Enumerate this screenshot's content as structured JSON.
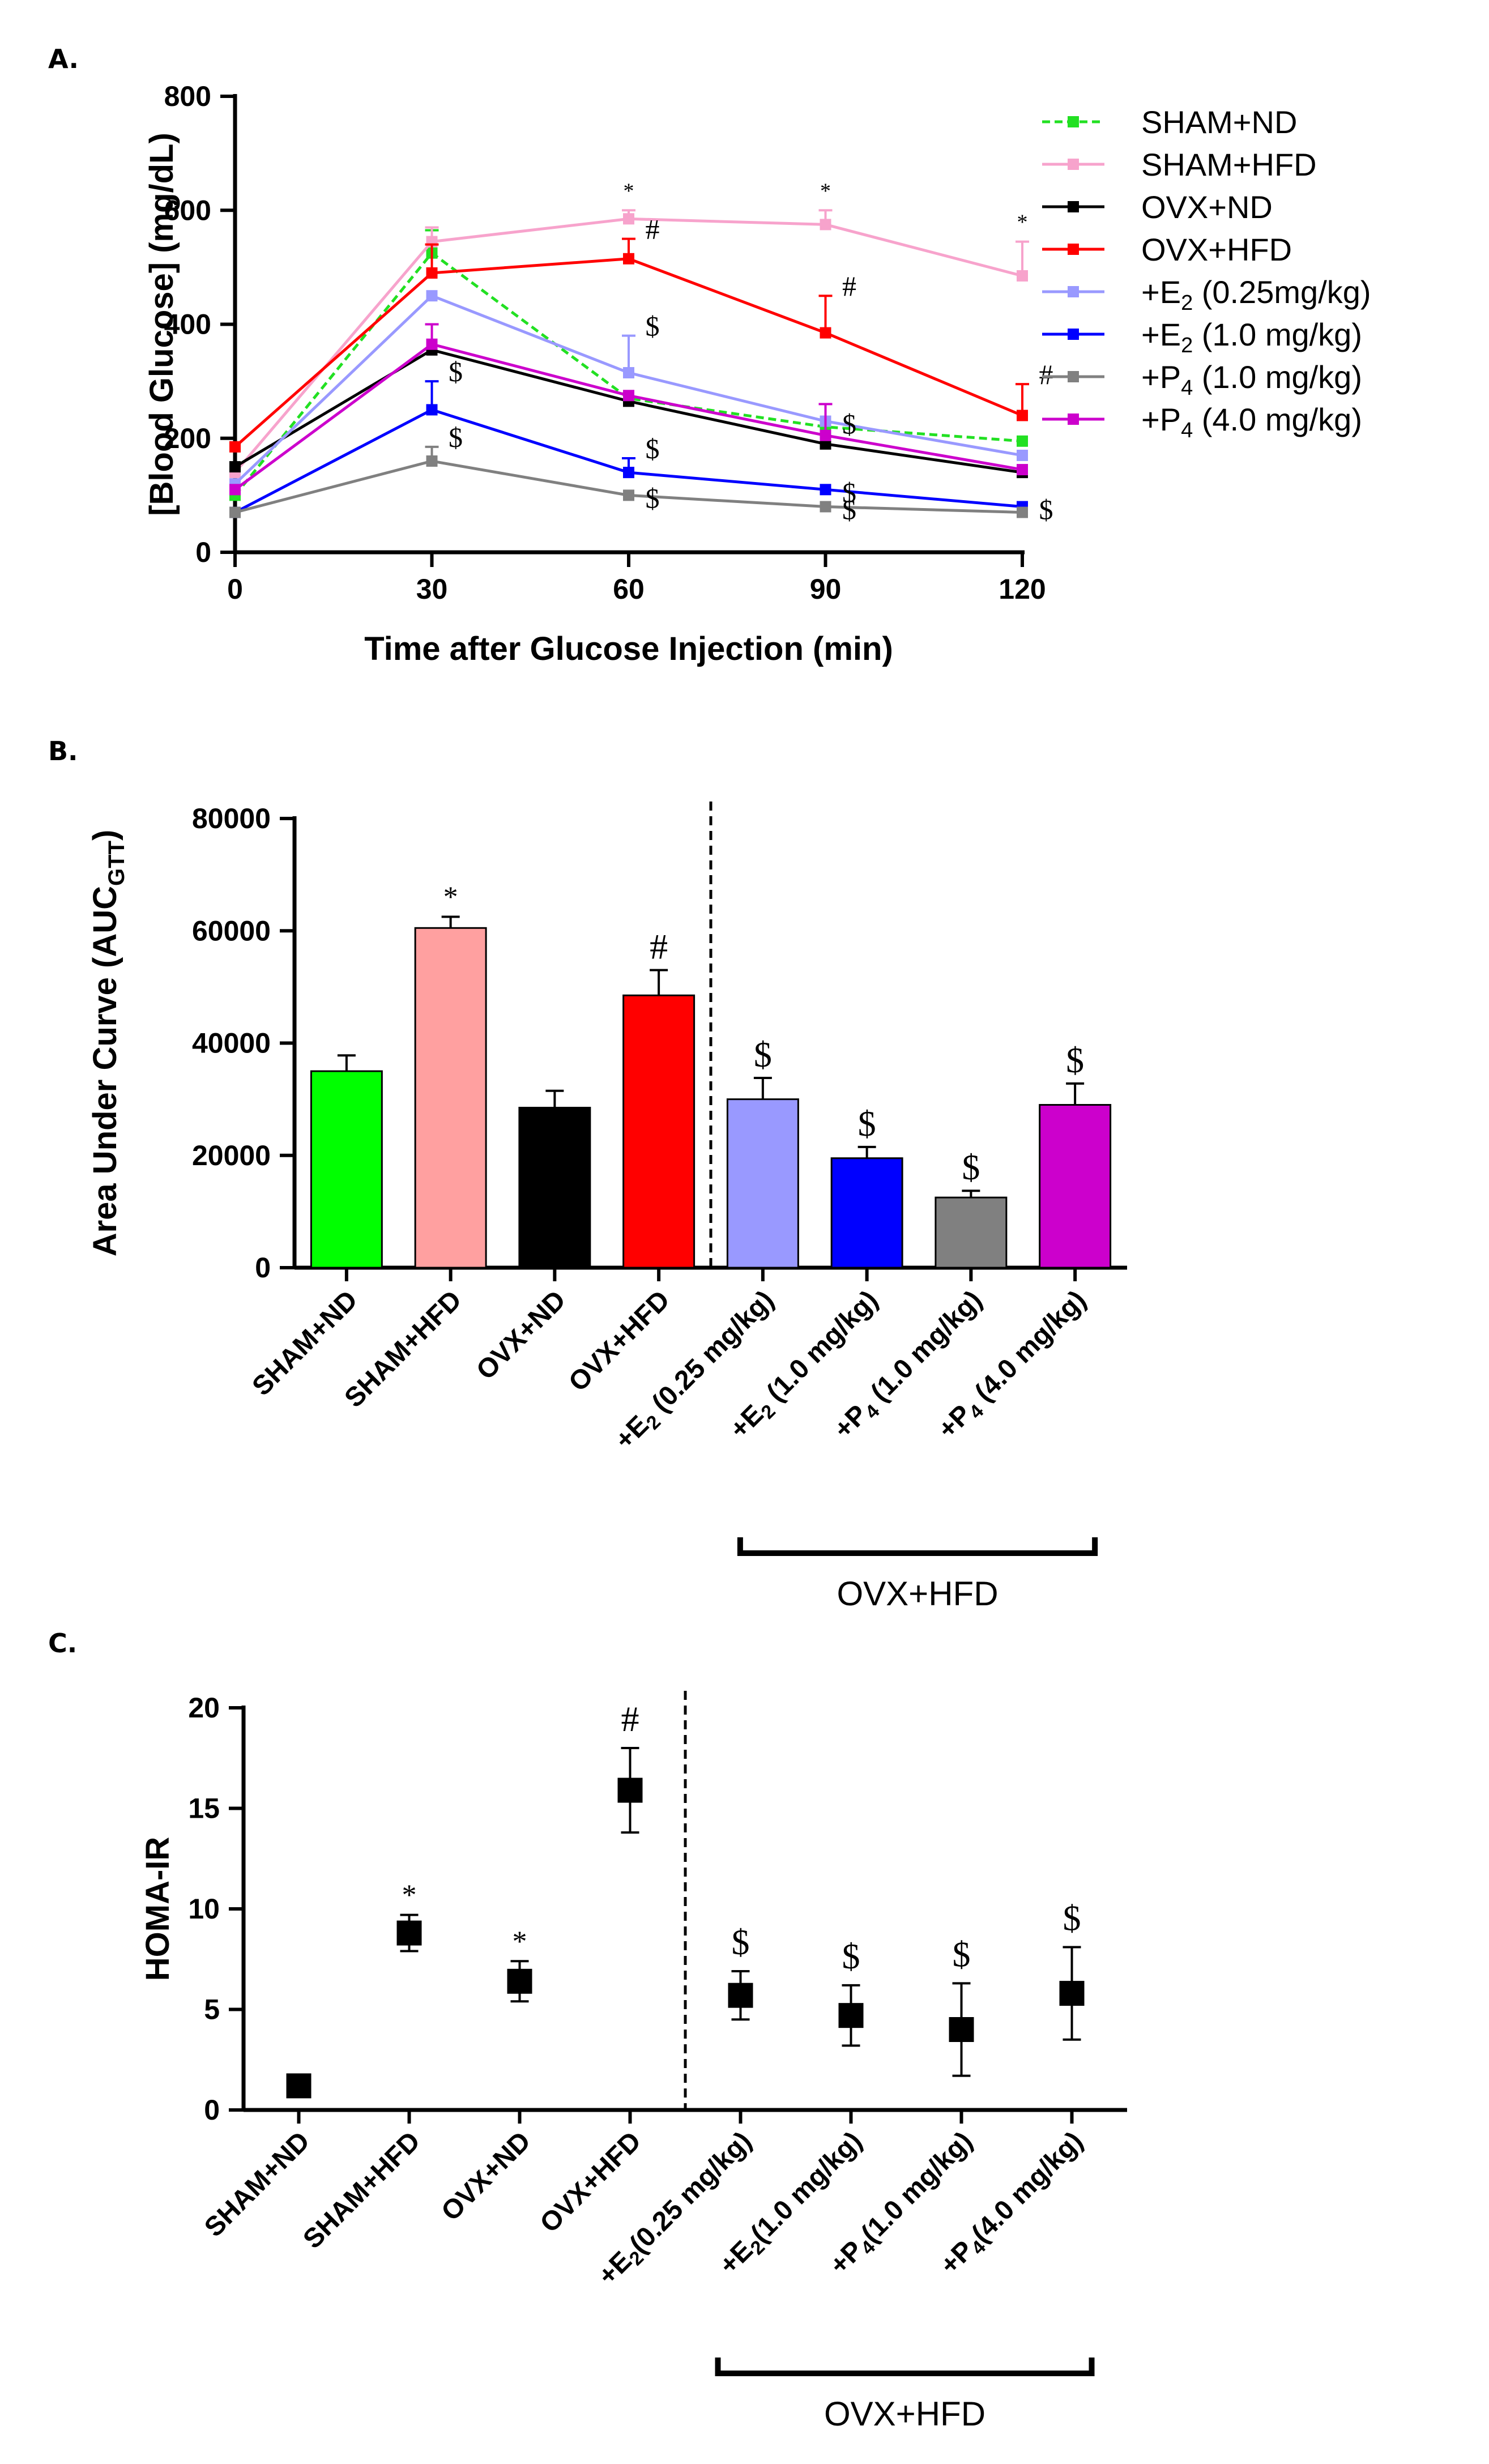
{
  "panels": {
    "a": "A.",
    "b": "B.",
    "c": "C."
  },
  "chart_data": [
    {
      "type": "line",
      "xlabel": "Time after Glucose Injection (min)",
      "ylabel": "[Blood Glucose] (mg/dL)",
      "x": [
        0,
        30,
        60,
        90,
        120
      ],
      "xticks": [
        "0",
        "30",
        "60",
        "90",
        "120"
      ],
      "xlim": [
        0,
        120
      ],
      "ylim": [
        0,
        800
      ],
      "yticks": [
        "0",
        "200",
        "400",
        "600",
        "800"
      ],
      "grid": false,
      "legend_position": "top-right",
      "series": [
        {
          "name": "SHAM+ND",
          "name_main": "SHAM+ND",
          "color": "#22e022",
          "dashed": true,
          "values": [
            100,
            525,
            270,
            220,
            195
          ],
          "errors": [
            0,
            40,
            0,
            0,
            0
          ],
          "annotations": [
            "",
            "",
            "",
            "",
            ""
          ]
        },
        {
          "name": "SHAM+HFD",
          "name_main": "SHAM+HFD",
          "color": "#f7a3cc",
          "dashed": false,
          "values": [
            140,
            545,
            585,
            575,
            485
          ],
          "errors": [
            0,
            25,
            15,
            25,
            60
          ],
          "annotations": [
            "",
            "",
            "*",
            "*",
            "*"
          ]
        },
        {
          "name": "OVX+ND",
          "name_main": "OVX+ND",
          "color": "#000000",
          "dashed": false,
          "values": [
            150,
            355,
            265,
            190,
            140
          ],
          "errors": [
            0,
            0,
            0,
            0,
            0
          ],
          "annotations": [
            "",
            "",
            "",
            "",
            ""
          ]
        },
        {
          "name": "OVX+HFD",
          "name_main": "OVX+HFD",
          "color": "#ff0000",
          "dashed": false,
          "values": [
            185,
            490,
            515,
            385,
            240
          ],
          "errors": [
            0,
            50,
            35,
            65,
            55
          ],
          "annotations": [
            "",
            "",
            "#",
            "#",
            "#"
          ]
        },
        {
          "name": "+E2 (0.25mg/kg)",
          "name_main": "+E",
          "name_sub": "2",
          "name_rest": " (0.25mg/kg)",
          "color": "#9999ff",
          "dashed": false,
          "values": [
            120,
            450,
            315,
            230,
            170
          ],
          "errors": [
            0,
            0,
            65,
            0,
            0
          ],
          "annotations": [
            "",
            "",
            "$",
            "$",
            ""
          ]
        },
        {
          "name": "+E2 (1.0 mg/kg)",
          "name_main": "+E",
          "name_sub": "2",
          "name_rest": " (1.0 mg/kg)",
          "color": "#0000ff",
          "dashed": false,
          "values": [
            70,
            250,
            140,
            110,
            80
          ],
          "errors": [
            0,
            50,
            25,
            0,
            0
          ],
          "annotations": [
            "",
            "$",
            "$",
            "$",
            "$"
          ]
        },
        {
          "name": "+P4 (1.0 mg/kg)",
          "name_main": "+P",
          "name_sub": "4",
          "name_rest": " (1.0 mg/kg)",
          "color": "#808080",
          "dashed": false,
          "values": [
            70,
            160,
            100,
            80,
            70
          ],
          "errors": [
            0,
            25,
            0,
            0,
            0
          ],
          "annotations": [
            "",
            "$",
            "$",
            "$",
            ""
          ]
        },
        {
          "name": "+P4 (4.0 mg/kg)",
          "name_main": "+P",
          "name_sub": "4",
          "name_rest": " (4.0 mg/kg)",
          "color": "#cc00cc",
          "dashed": false,
          "values": [
            110,
            365,
            275,
            205,
            145
          ],
          "errors": [
            0,
            35,
            0,
            55,
            0
          ],
          "annotations": [
            "",
            "",
            "",
            "",
            ""
          ]
        }
      ]
    },
    {
      "type": "bar",
      "ylabel_main": "Area Under Curve (AUC",
      "ylabel_sub": "GTT",
      "ylabel_end": ")",
      "ylim": [
        0,
        80000
      ],
      "yticks": [
        "0",
        "20000",
        "40000",
        "60000",
        "80000"
      ],
      "categories": [
        {
          "label": "SHAM+ND",
          "main": "SHAM+ND"
        },
        {
          "label": "SHAM+HFD",
          "main": "SHAM+HFD"
        },
        {
          "label": "OVX+ND",
          "main": "OVX+ND"
        },
        {
          "label": "OVX+HFD",
          "main": "OVX+HFD"
        },
        {
          "label": "+E2 (0.25 mg/kg)",
          "main": "+E",
          "sub": "2",
          "rest": " (0.25 mg/kg)"
        },
        {
          "label": "+E2 (1.0 mg/kg)",
          "main": "+E",
          "sub": "2",
          "rest": " (1.0 mg/kg)"
        },
        {
          "label": "+P4 (1.0 mg/kg)",
          "main": "+P",
          "sub": "4",
          "rest": " (1.0 mg/kg)"
        },
        {
          "label": "+P4 (4.0 mg/kg)",
          "main": "+P",
          "sub": "4",
          "rest": " (4.0 mg/kg)"
        }
      ],
      "values": [
        35000,
        60500,
        28500,
        48500,
        30000,
        19500,
        12500,
        29000
      ],
      "errors": [
        2800,
        2000,
        3000,
        4500,
        3800,
        2000,
        1200,
        3800
      ],
      "colors": [
        "#00ff00",
        "#ffa0a0",
        "#000000",
        "#ff0000",
        "#9999ff",
        "#0000ff",
        "#808080",
        "#cc00cc"
      ],
      "annotations": [
        "",
        "*",
        "",
        "#",
        "$",
        "$",
        "$",
        "$"
      ],
      "divider_after_index": 3,
      "bracket": {
        "label": "OVX+HFD",
        "from_index": 4,
        "to_index": 7
      }
    },
    {
      "type": "scatter",
      "ylabel": "HOMA-IR",
      "ylim": [
        0,
        20
      ],
      "yticks": [
        "0",
        "5",
        "10",
        "15",
        "20"
      ],
      "categories": [
        {
          "label": "SHAM+ND",
          "main": "SHAM+ND"
        },
        {
          "label": "SHAM+HFD",
          "main": "SHAM+HFD"
        },
        {
          "label": "OVX+ND",
          "main": "OVX+ND"
        },
        {
          "label": "OVX+HFD",
          "main": "OVX+HFD"
        },
        {
          "label": "+E2(0.25 mg/kg)",
          "main": "+E",
          "sub": "2",
          "rest": "(0.25 mg/kg)"
        },
        {
          "label": "+E2(1.0 mg/kg)",
          "main": "+E",
          "sub": "2",
          "rest": "(1.0 mg/kg)"
        },
        {
          "label": "+P4(1.0 mg/kg)",
          "main": "+P",
          "sub": "4",
          "rest": "(1.0 mg/kg)"
        },
        {
          "label": "+P4(4.0 mg/kg)",
          "main": "+P",
          "sub": "4",
          "rest": "(4.0 mg/kg)"
        }
      ],
      "values": [
        1.2,
        8.8,
        6.4,
        15.9,
        5.7,
        4.7,
        4.0,
        5.8
      ],
      "errors": [
        0.2,
        0.9,
        1.0,
        2.1,
        1.2,
        1.5,
        2.3,
        2.3
      ],
      "annotations": [
        "",
        "*",
        "*",
        "#",
        "$",
        "$",
        "$",
        "$"
      ],
      "divider_after_index": 3,
      "bracket": {
        "label": "OVX+HFD",
        "from_index": 4,
        "to_index": 7
      }
    }
  ]
}
